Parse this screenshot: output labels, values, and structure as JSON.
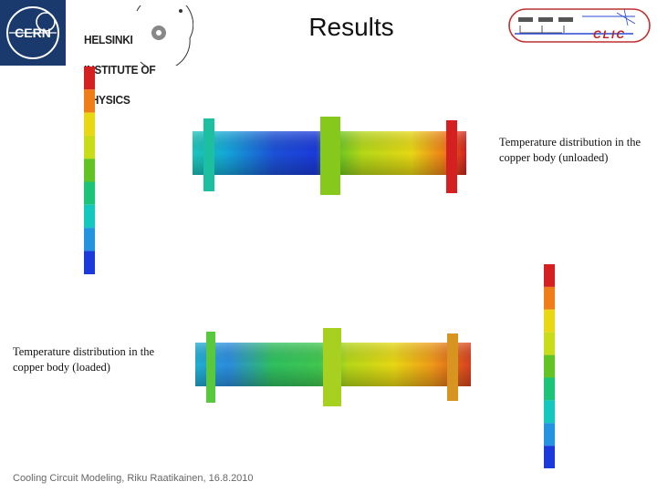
{
  "header": {
    "title": "Results",
    "hip_logo_lines": [
      "HELSINKI",
      "INSTITUTE OF",
      "PHYSICS"
    ],
    "cern_logo_text": "CERN",
    "clic_logo_text": "CLIC"
  },
  "figures": {
    "unloaded": {
      "caption": "Temperature distribution in the copper body (unloaded)"
    },
    "loaded": {
      "caption": "Temperature distribution in the copper body (loaded)"
    }
  },
  "footer": {
    "text": "Cooling Circuit Modeling, Riku Raatikainen, 16.8.2010"
  },
  "colors": {
    "cern_blue": "#1a3a6e",
    "scale": [
      "#d42020",
      "#ef7d18",
      "#e8d814",
      "#c8dc18",
      "#62c424",
      "#1cc47a",
      "#14c8c0",
      "#2494e0",
      "#1c3adc"
    ]
  }
}
